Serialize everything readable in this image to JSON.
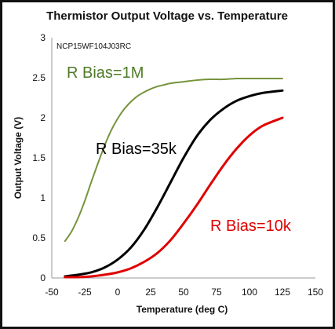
{
  "chart_data": {
    "type": "line",
    "title": "Thermistor Output Voltage vs. Temperature",
    "annotation": "NCP15WF104J03RC",
    "xlabel": "Temperature (deg C)",
    "ylabel": "Output Voltage (V)",
    "xlim": [
      -50,
      150
    ],
    "ylim": [
      0,
      3
    ],
    "x_ticks": [
      "-50",
      "-25",
      "0",
      "25",
      "50",
      "75",
      "100",
      "125",
      "150"
    ],
    "y_ticks": [
      "0",
      "0.5",
      "1",
      "1.5",
      "2",
      "2.5",
      "3"
    ],
    "grid": false,
    "legend": "none",
    "series": [
      {
        "name": "R Bias=1M",
        "color": "#77933c",
        "label_color": "#4f7a28",
        "x": [
          -40,
          -35,
          -30,
          -25,
          -20,
          -15,
          -10,
          -5,
          0,
          5,
          10,
          15,
          20,
          25,
          30,
          35,
          40,
          50,
          60,
          70,
          80,
          90,
          100,
          110,
          125
        ],
        "y": [
          0.46,
          0.58,
          0.75,
          0.96,
          1.2,
          1.43,
          1.65,
          1.84,
          1.99,
          2.11,
          2.2,
          2.27,
          2.32,
          2.36,
          2.39,
          2.41,
          2.43,
          2.45,
          2.47,
          2.48,
          2.48,
          2.49,
          2.49,
          2.49,
          2.49
        ]
      },
      {
        "name": "R Bias=35k",
        "color": "#000000",
        "label_color": "#000000",
        "x": [
          -40,
          -30,
          -20,
          -10,
          0,
          10,
          20,
          30,
          40,
          50,
          60,
          70,
          80,
          90,
          100,
          110,
          125
        ],
        "y": [
          0.02,
          0.04,
          0.07,
          0.13,
          0.23,
          0.38,
          0.6,
          0.88,
          1.19,
          1.5,
          1.77,
          1.97,
          2.11,
          2.21,
          2.27,
          2.31,
          2.34
        ]
      },
      {
        "name": "R Bias=10k",
        "color": "#e00000",
        "label_color": "#dd0000",
        "x": [
          -40,
          -30,
          -20,
          -10,
          0,
          10,
          20,
          30,
          40,
          50,
          60,
          70,
          80,
          90,
          100,
          110,
          125
        ],
        "y": [
          0.01,
          0.01,
          0.02,
          0.04,
          0.07,
          0.12,
          0.2,
          0.31,
          0.47,
          0.68,
          0.91,
          1.16,
          1.4,
          1.61,
          1.78,
          1.9,
          2.0
        ]
      }
    ]
  }
}
